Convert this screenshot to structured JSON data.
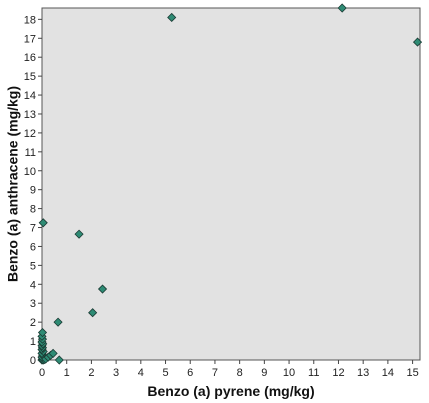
{
  "chart_data": {
    "type": "scatter",
    "title": "",
    "xlabel": "Benzo (a) pyrene (mg/kg)",
    "ylabel": "Benzo (a) anthracene (mg/kg)",
    "xlim": [
      0,
      15.3
    ],
    "ylim": [
      0,
      18.6
    ],
    "x_ticks": [
      0,
      1,
      2,
      3,
      4,
      5,
      6,
      7,
      8,
      9,
      10,
      11,
      12,
      13,
      14,
      15
    ],
    "y_ticks": [
      0,
      1,
      2,
      3,
      4,
      5,
      6,
      7,
      8,
      9,
      10,
      11,
      12,
      13,
      14,
      15,
      16,
      17,
      18
    ],
    "grid": false,
    "legend": "none",
    "colors": {
      "plot_background": "#e2e2e2",
      "marker_fill": "#2e8b74",
      "marker_stroke": "#1a3a33"
    },
    "series": [
      {
        "marker": "diamond",
        "points": [
          {
            "x": 0.0,
            "y": 0.0
          },
          {
            "x": 0.02,
            "y": 0.05
          },
          {
            "x": 0.05,
            "y": 0.0
          },
          {
            "x": 0.08,
            "y": 0.1
          },
          {
            "x": 0.1,
            "y": 0.02
          },
          {
            "x": 0.0,
            "y": 0.15
          },
          {
            "x": 0.03,
            "y": 0.25
          },
          {
            "x": 0.0,
            "y": 0.35
          },
          {
            "x": 0.05,
            "y": 0.45
          },
          {
            "x": 0.0,
            "y": 0.55
          },
          {
            "x": 0.02,
            "y": 0.65
          },
          {
            "x": 0.0,
            "y": 0.75
          },
          {
            "x": 0.03,
            "y": 0.85
          },
          {
            "x": 0.0,
            "y": 0.95
          },
          {
            "x": 0.02,
            "y": 1.1
          },
          {
            "x": 0.0,
            "y": 1.25
          },
          {
            "x": 0.02,
            "y": 1.45
          },
          {
            "x": 0.15,
            "y": 0.05
          },
          {
            "x": 0.25,
            "y": 0.15
          },
          {
            "x": 0.35,
            "y": 0.25
          },
          {
            "x": 0.45,
            "y": 0.35
          },
          {
            "x": 0.7,
            "y": 0.0
          },
          {
            "x": 0.65,
            "y": 2.0
          },
          {
            "x": 0.05,
            "y": 7.25
          },
          {
            "x": 1.5,
            "y": 6.65
          },
          {
            "x": 2.05,
            "y": 2.5
          },
          {
            "x": 2.45,
            "y": 3.75
          },
          {
            "x": 5.25,
            "y": 18.1
          },
          {
            "x": 12.15,
            "y": 18.6
          },
          {
            "x": 15.2,
            "y": 16.8
          }
        ]
      }
    ]
  }
}
